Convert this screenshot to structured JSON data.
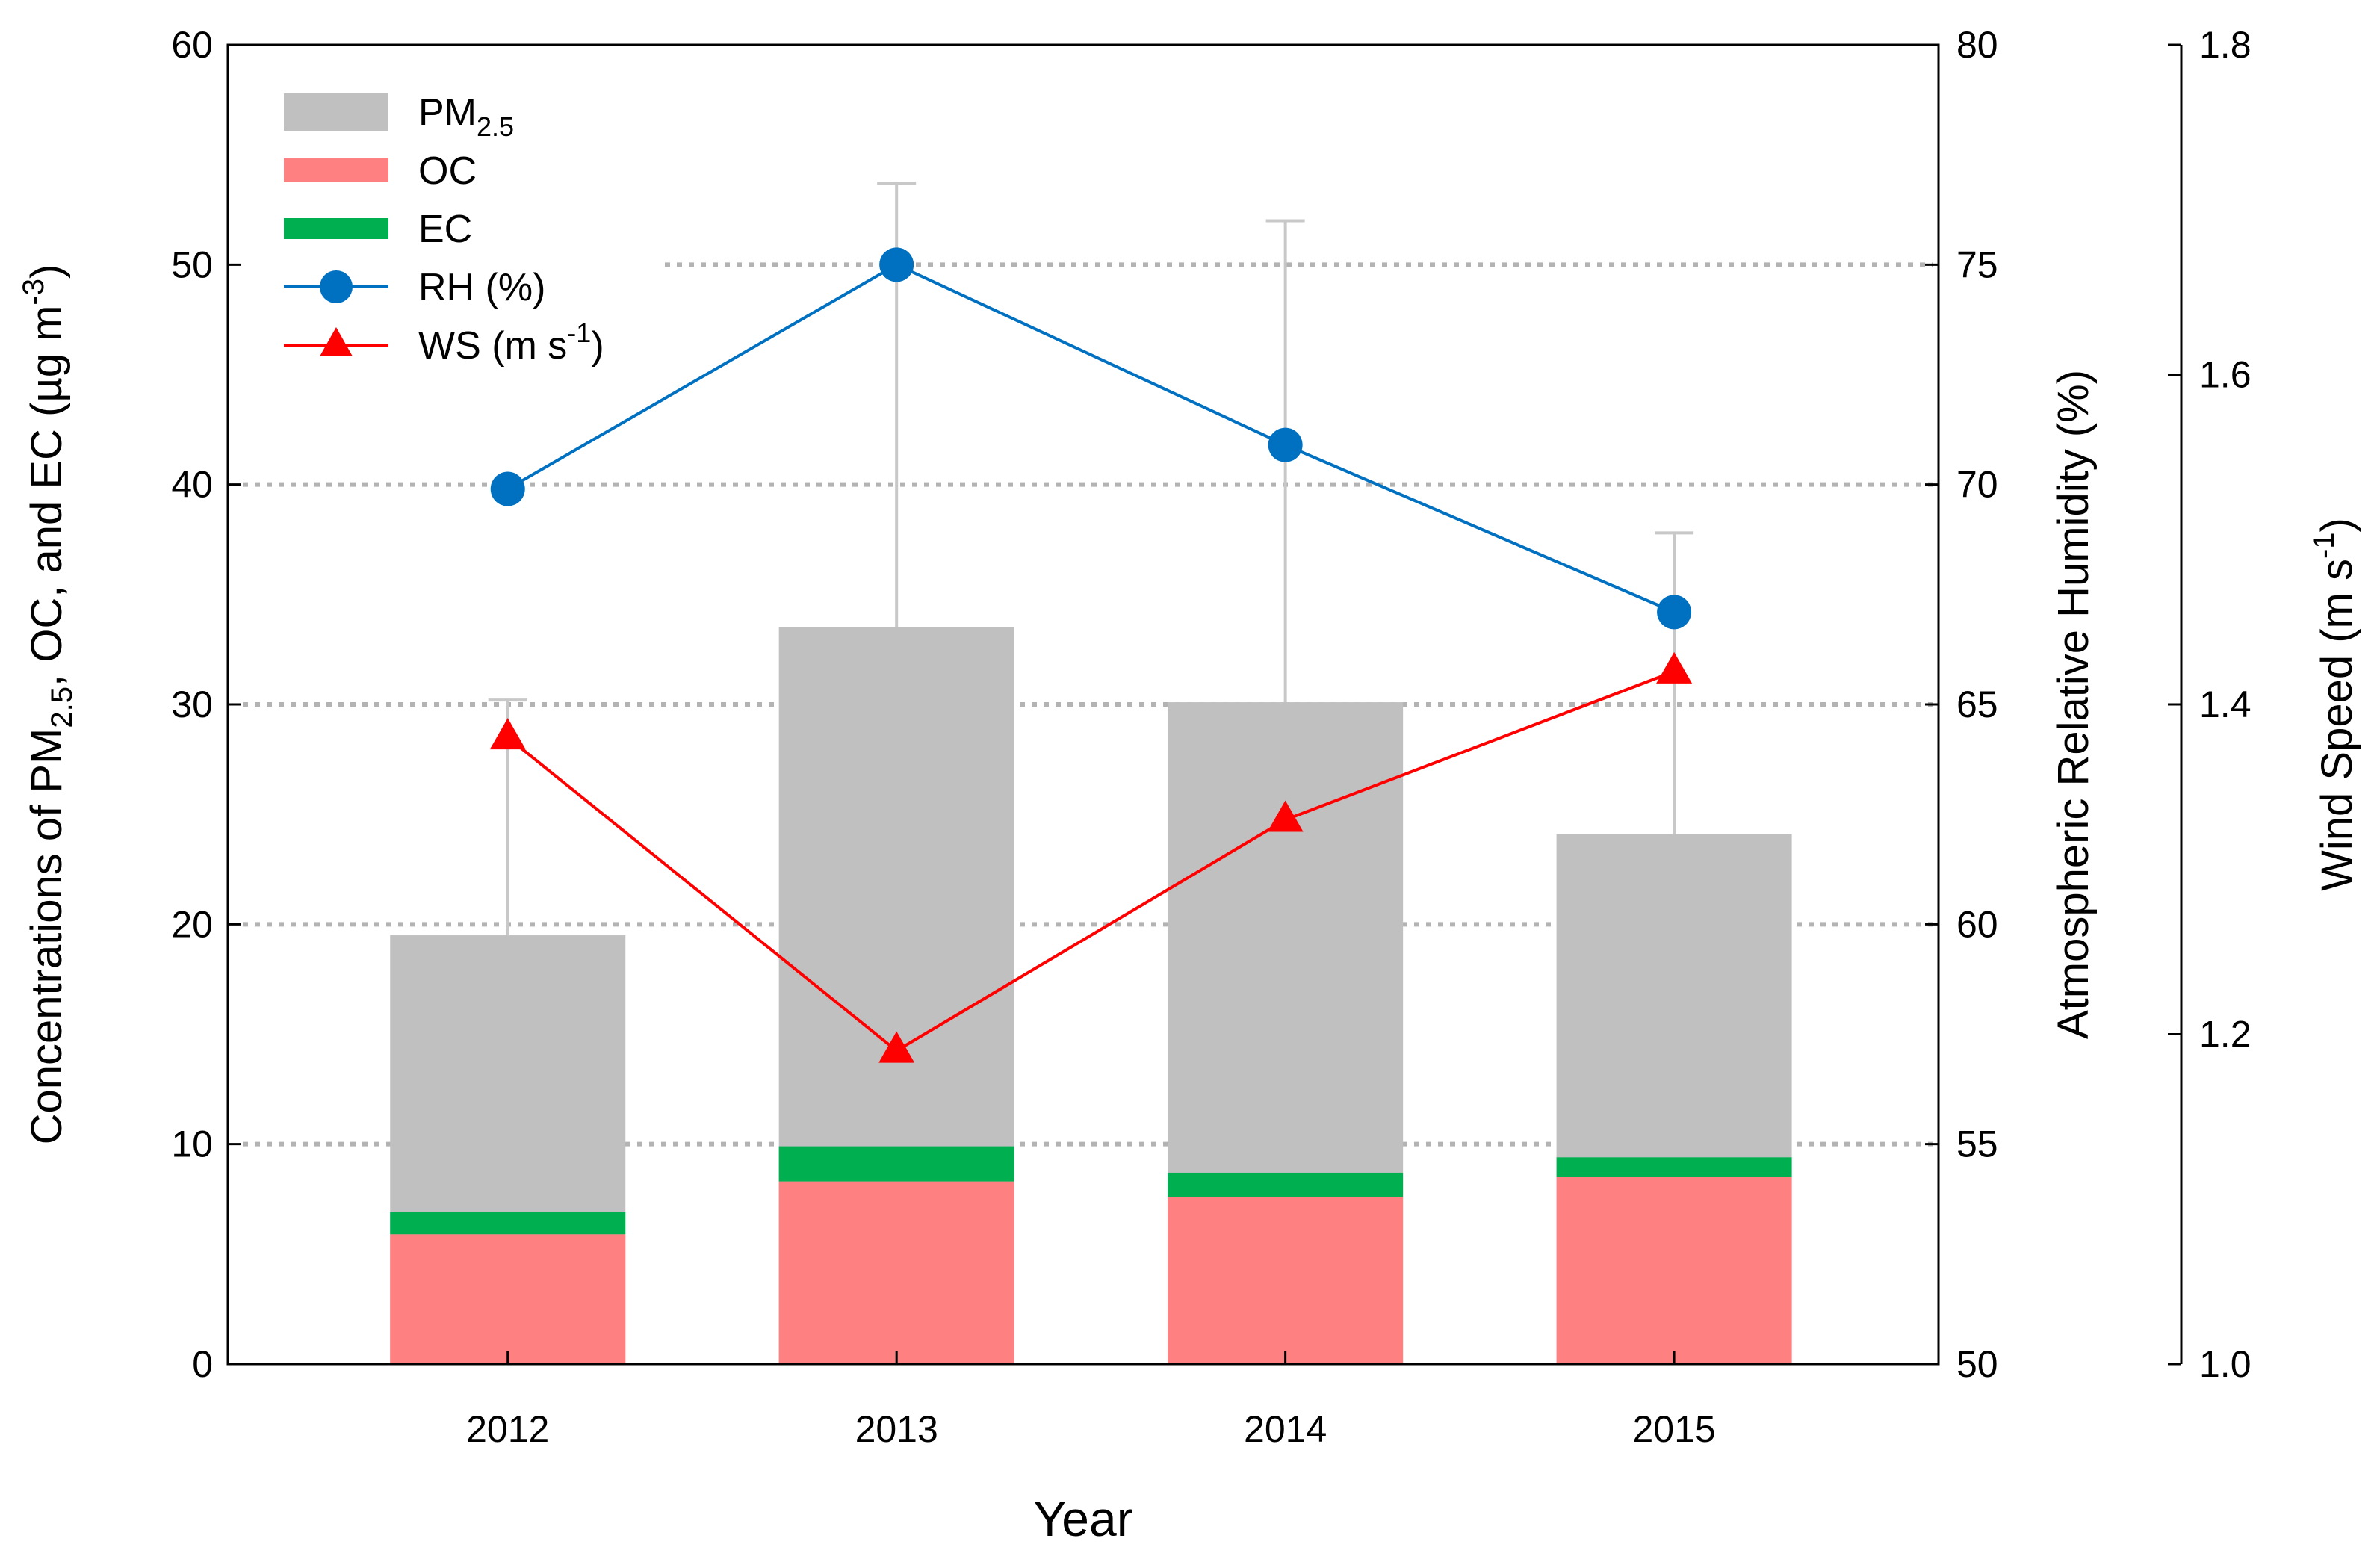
{
  "chart_data": {
    "type": "bar",
    "stacked_series": [
      "PM2.5",
      "OC",
      "EC"
    ],
    "categories": [
      "2012",
      "2013",
      "2014",
      "2015"
    ],
    "series": [
      {
        "name": "PM2.5",
        "type": "bar",
        "axis": "left",
        "values": [
          19.5,
          33.5,
          30.1,
          24.1
        ],
        "error_upper": [
          30.2,
          53.7,
          52.0,
          37.8
        ],
        "color": "#c0c0c0"
      },
      {
        "name": "OC",
        "type": "bar",
        "axis": "left",
        "values": [
          5.9,
          8.3,
          7.6,
          8.5
        ],
        "color": "#ff8080"
      },
      {
        "name": "EC",
        "type": "bar",
        "axis": "left",
        "values": [
          1.0,
          1.6,
          1.1,
          0.9
        ],
        "color": "#00b050"
      },
      {
        "name": "RH (%)",
        "type": "line",
        "axis": "right1",
        "marker": "circle",
        "values": [
          69.9,
          75.0,
          70.9,
          67.1
        ],
        "color": "#0070c0"
      },
      {
        "name": "WS (m s-1)",
        "type": "line",
        "axis": "right2",
        "marker": "triangle",
        "values": [
          1.38,
          1.19,
          1.33,
          1.42
        ],
        "color": "#ff0000"
      }
    ],
    "xlabel": "Year",
    "ylabel_left": {
      "main": "Concentrations of PM",
      "sub": "2.5",
      "rest": ", OC, and EC (µg m",
      "sup": "-3",
      "end": ")"
    },
    "ylabel_right1": "Atmospheric Relative Humidity (%)",
    "ylabel_right2": {
      "main": "Wind Speed (m s",
      "sup": "-1",
      "end": ")"
    },
    "ylim_left": [
      0,
      60
    ],
    "ylim_right1": [
      50,
      80
    ],
    "ylim_right2": [
      1.0,
      1.8
    ],
    "yticks_left": [
      "0",
      "10",
      "20",
      "30",
      "40",
      "50",
      "60"
    ],
    "yticks_right1": [
      "50",
      "55",
      "60",
      "65",
      "70",
      "75",
      "80"
    ],
    "yticks_right2": [
      "1.0",
      "1.2",
      "1.4",
      "1.6",
      "1.8"
    ],
    "grid": "horizontal dotted",
    "legend_position": "top-left",
    "legend": [
      {
        "label": "PM",
        "sub": "2.5",
        "sup": ""
      },
      {
        "label": "OC",
        "sub": "",
        "sup": ""
      },
      {
        "label": "EC",
        "sub": "",
        "sup": ""
      },
      {
        "label": "RH (%)",
        "sub": "",
        "sup": ""
      },
      {
        "label": "WS (m s",
        "sub": "",
        "sup": "-1",
        "end": ")"
      }
    ]
  }
}
